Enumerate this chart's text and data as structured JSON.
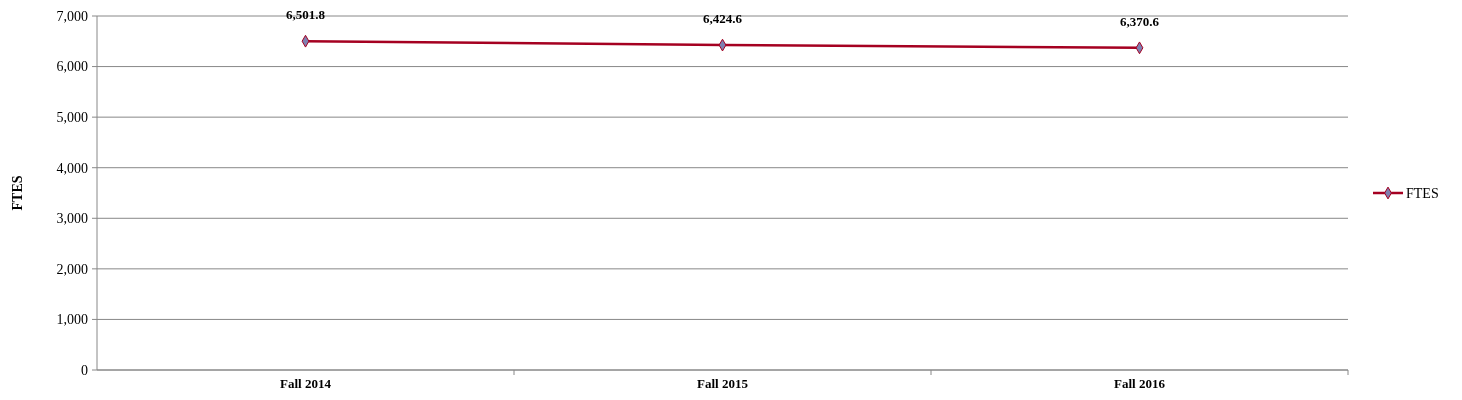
{
  "chart_data": {
    "type": "line",
    "ylabel": "FTES",
    "categories": [
      "Fall 2014",
      "Fall 2015",
      "Fall 2016"
    ],
    "series": [
      {
        "name": "FTES",
        "color": "#a50021",
        "values": [
          6501.8,
          6424.6,
          6370.6
        ],
        "value_labels": [
          "6,501.8",
          "6,424.6",
          "6,370.6"
        ]
      }
    ],
    "ylim": [
      0,
      7000
    ],
    "yticks": [
      {
        "value": 0,
        "label": "0"
      },
      {
        "value": 1000,
        "label": "1,000"
      },
      {
        "value": 2000,
        "label": "2,000"
      },
      {
        "value": 3000,
        "label": "3,000"
      },
      {
        "value": 4000,
        "label": "4,000"
      },
      {
        "value": 5000,
        "label": "5,000"
      },
      {
        "value": 6000,
        "label": "6,000"
      },
      {
        "value": 7000,
        "label": "7,000"
      }
    ],
    "grid": "y",
    "legend": "right",
    "marker": "diamond"
  }
}
